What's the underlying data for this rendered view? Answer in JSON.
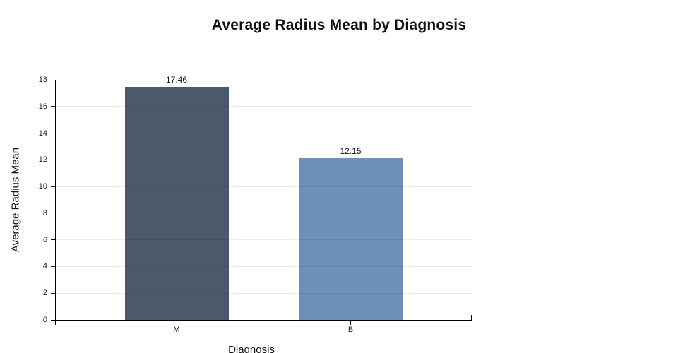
{
  "chart_data": {
    "type": "bar",
    "title": "Average Radius Mean by Diagnosis",
    "xlabel": "Diagnosis",
    "ylabel": "Average Radius Mean",
    "categories": [
      "M",
      "B"
    ],
    "values": [
      17.46,
      12.15
    ],
    "data_labels": [
      "17.46",
      "12.15"
    ],
    "ylim": [
      0,
      18
    ],
    "yticks": [
      0,
      2,
      4,
      6,
      8,
      10,
      12,
      14,
      16,
      18
    ],
    "grid": "horizontal",
    "legend": "none",
    "bar_colors": [
      "#4a5a6a",
      "#6d90b6"
    ],
    "axis_color": "#000000",
    "text_color": "#111111"
  }
}
